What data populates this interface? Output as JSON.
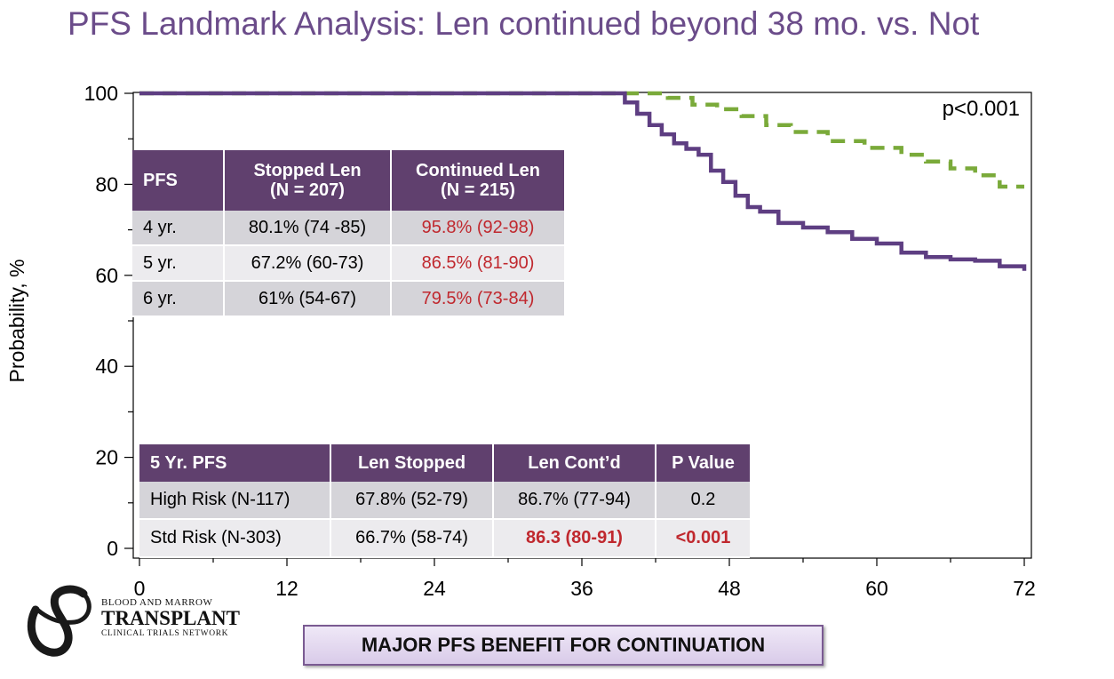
{
  "title": "PFS Landmark Analysis: Len continued beyond 38 mo. vs. Not",
  "chart_data": {
    "type": "line",
    "title": "PFS Landmark Analysis: Len continued beyond 38 mo. vs. Not",
    "xlabel": "",
    "ylabel": "Probability, %",
    "xlim": [
      0,
      72
    ],
    "ylim": [
      0,
      100
    ],
    "xticks": [
      0,
      12,
      24,
      36,
      48,
      60,
      72
    ],
    "yticks": [
      0,
      20,
      40,
      60,
      80,
      100
    ],
    "annotation": "p<0.001",
    "series": [
      {
        "name": "Continued Len",
        "color": "#7aaa3a",
        "style": "dashed",
        "x": [
          0,
          38.5,
          43,
          45,
          47,
          49,
          51,
          53,
          56,
          59,
          62,
          64,
          66,
          68,
          70,
          72
        ],
        "y": [
          100,
          100,
          99,
          97.5,
          96.5,
          95,
          93,
          91.5,
          89.5,
          88,
          86.5,
          85,
          83.5,
          82,
          79.5,
          79.5
        ]
      },
      {
        "name": "Stopped Len",
        "color": "#5e3e82",
        "style": "solid",
        "x": [
          0,
          38.5,
          39.5,
          40.5,
          41.5,
          42.5,
          43.5,
          44.5,
          45.5,
          46.5,
          47.5,
          48.5,
          49.5,
          50.5,
          52,
          54,
          56,
          58,
          60,
          62,
          64,
          66,
          68,
          70,
          72
        ],
        "y": [
          100,
          100,
          98,
          95.5,
          93,
          91,
          89,
          87.8,
          86.5,
          83,
          80.5,
          77.5,
          75,
          74,
          71.5,
          70.5,
          69.5,
          68,
          67,
          65,
          64,
          63.5,
          63.2,
          62,
          61
        ]
      }
    ]
  },
  "table_top": {
    "headers": [
      "PFS",
      "Stopped Len\n(N = 207)",
      "Continued Len\n(N = 215)"
    ],
    "rows": [
      [
        "4 yr.",
        "80.1% (74 -85)",
        "95.8% (92-98)"
      ],
      [
        "5 yr.",
        "67.2% (60-73)",
        "86.5% (81-90)"
      ],
      [
        "6 yr.",
        "61% (54-67)",
        "79.5% (73-84)"
      ]
    ]
  },
  "table_bottom": {
    "headers": [
      "5 Yr. PFS",
      "Len Stopped",
      "Len Cont’d",
      "P Value"
    ],
    "rows": [
      [
        "High Risk (N-117)",
        "67.8% (52-79)",
        "86.7% (77-94)",
        "0.2"
      ],
      [
        "Std Risk (N-303)",
        "66.7% (58-74)",
        "86.3 (80-91)",
        "<0.001"
      ]
    ]
  },
  "banner": "MAJOR PFS BENEFIT FOR CONTINUATION",
  "logo": {
    "line1": "BLOOD AND MARROW",
    "line2": "TRANSPLANT",
    "line3": "CLINICAL TRIALS NETWORK"
  }
}
